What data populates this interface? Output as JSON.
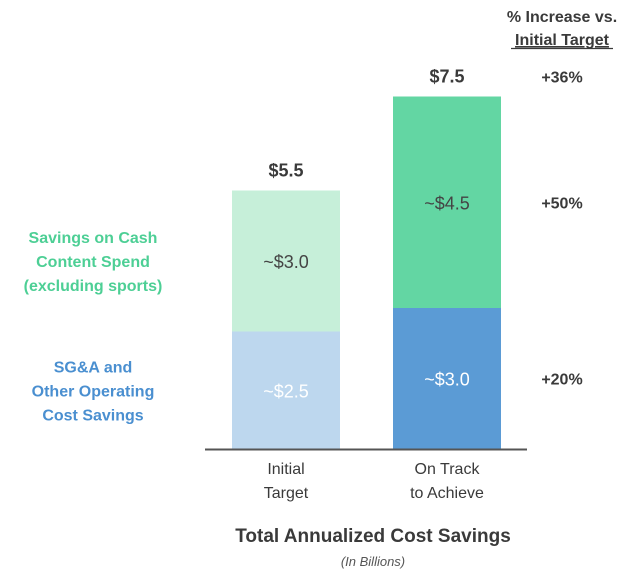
{
  "chart_data": {
    "type": "bar",
    "stacked": true,
    "title": "Total Annualized Cost Savings",
    "subtitle": "(In Billions)",
    "categories": [
      [
        "Initial",
        "Target"
      ],
      [
        "On Track",
        "to Achieve"
      ]
    ],
    "series": [
      {
        "name": [
          "SG&A and",
          "Other Operating",
          "Cost Savings"
        ],
        "values": [
          2.5,
          3.0
        ],
        "labels": [
          "~$2.5",
          "~$3.0"
        ],
        "colors": [
          "#bdd7ee",
          "#5b9bd5"
        ],
        "label_colors": [
          "#ffffff",
          "#ffffff"
        ],
        "legend_color": "#4a8fd0"
      },
      {
        "name": [
          "Savings on Cash",
          "Content Spend",
          "(excluding sports)"
        ],
        "values": [
          3.0,
          4.5
        ],
        "labels": [
          "~$3.0",
          "~$4.5"
        ],
        "colors": [
          "#c6efd9",
          "#63d6a3"
        ],
        "label_colors": [
          "#444444",
          "#444444"
        ],
        "legend_color": "#4dcf95"
      }
    ],
    "totals": [
      "$5.5",
      "$7.5"
    ],
    "increase_header": [
      "% Increase vs.",
      "Initial Target"
    ],
    "increases": [
      "+36%",
      "+50%",
      "+20%"
    ],
    "ylim": [
      0,
      8
    ],
    "grid": false,
    "text_color": "#3a3a3a"
  }
}
